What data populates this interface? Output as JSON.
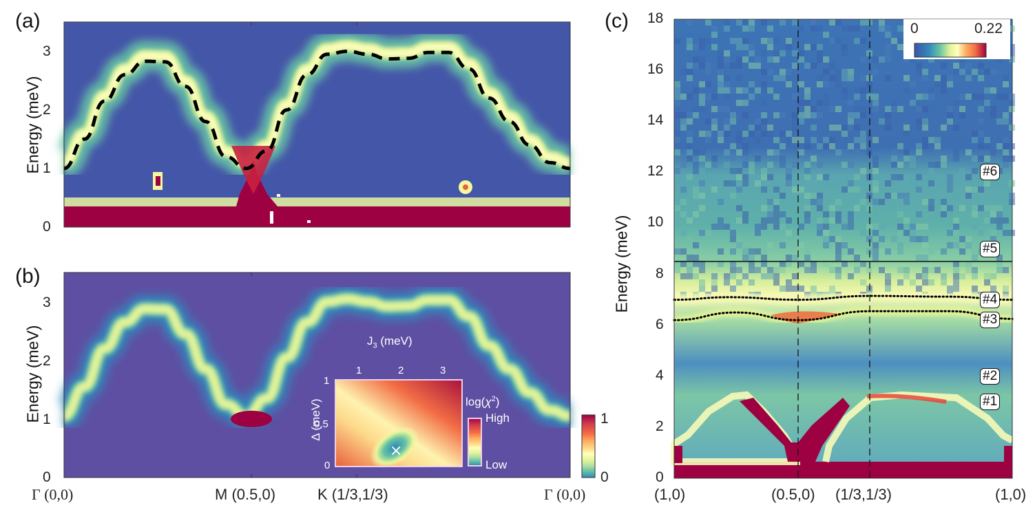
{
  "chart_data": [
    {
      "id": "a",
      "type": "heatmap",
      "panel_label": "(a)",
      "title": "",
      "ylabel": "Energy (meV)",
      "xlabel": "",
      "ylim": [
        0,
        3.5
      ],
      "yticks": [
        "0",
        "1",
        "2",
        "3"
      ],
      "x_points": [
        "Γ (0,0)",
        "M (0.5,0)",
        "K (1/3,1/3)",
        "Γ (0,0)"
      ],
      "colormap": "spectral_r",
      "dispersion_fit_dashed": {
        "x": [
          0,
          0.1,
          0.2,
          0.3,
          0.4,
          0.5,
          0.6,
          0.7,
          0.8,
          0.9,
          1.0,
          1.1,
          1.2,
          1.3,
          1.4,
          1.5,
          1.6,
          1.7,
          1.8,
          1.9,
          2.0,
          2.1,
          2.2,
          2.3,
          2.4,
          2.5
        ],
        "y": [
          1.0,
          1.5,
          2.15,
          2.6,
          2.83,
          2.82,
          2.4,
          1.8,
          1.2,
          1.0,
          1.3,
          2.0,
          2.6,
          2.95,
          3.0,
          2.95,
          2.87,
          2.88,
          2.98,
          2.98,
          2.7,
          2.2,
          1.8,
          1.4,
          1.1,
          1.0
        ]
      },
      "features": [
        "bright magnon band following dashed line",
        "intensity maximum near M at ~1 meV",
        "elastic line below 0.3 meV",
        "spurious spots near 0.7 meV"
      ]
    },
    {
      "id": "b",
      "type": "heatmap",
      "panel_label": "(b)",
      "ylabel": "Energy (meV)",
      "ylim": [
        0,
        3.5
      ],
      "yticks": [
        "0",
        "1",
        "2",
        "3"
      ],
      "x_points": [
        "Γ (0,0)",
        "M (0.5,0)",
        "K (1/3,1/3)",
        "Γ (0,0)"
      ],
      "colorbar": {
        "min": "0",
        "max": "1"
      },
      "inset": {
        "type": "heatmap",
        "xlabel": "J3 (meV)",
        "xticks": [
          "1",
          "2",
          "3"
        ],
        "xlim": [
          0.5,
          3.5
        ],
        "ylabel": "Δ (meV)",
        "yticks": [
          "0",
          "0.5",
          "1"
        ],
        "ylim": [
          0,
          1
        ],
        "colorbar_title": "log(χ²)",
        "colorbar_high": "High",
        "colorbar_low": "Low",
        "best_fit_marker": {
          "J3": 1.9,
          "Delta": 0.18,
          "symbol": "×"
        }
      }
    },
    {
      "id": "c",
      "type": "heatmap",
      "panel_label": "(c)",
      "ylabel": "Energy (meV)",
      "ylim": [
        0,
        18
      ],
      "yticks": [
        "0",
        "2",
        "4",
        "6",
        "8",
        "10",
        "12",
        "14",
        "16",
        "18"
      ],
      "x_points": [
        "(1,0)",
        "(0.5,0)",
        "(1/3,1/3)",
        "(1,0)"
      ],
      "colorbar": {
        "min": "0",
        "max": "0.22"
      },
      "horizontal_line_energy": 8.5,
      "mode_labels": [
        {
          "label": "#1",
          "energy": 3.0
        },
        {
          "label": "#2",
          "energy": 4.0
        },
        {
          "label": "#3",
          "energy": 6.2
        },
        {
          "label": "#4",
          "energy": 7.0
        },
        {
          "label": "#5",
          "energy": 9.0
        },
        {
          "label": "#6",
          "energy": 12.0
        }
      ],
      "dotted_curves": [
        {
          "name": "#4",
          "energy_range": [
            7.0,
            7.15
          ]
        },
        {
          "name": "#3",
          "energy_range": [
            6.2,
            6.55
          ]
        }
      ]
    }
  ]
}
